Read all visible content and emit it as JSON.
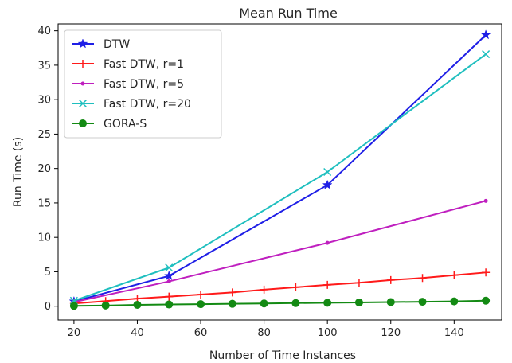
{
  "chart_data": {
    "type": "line",
    "title": "Mean Run Time",
    "xlabel": "Number of Time Instances",
    "ylabel": "Run Time (s)",
    "xlim": [
      15,
      155
    ],
    "ylim": [
      -2,
      41
    ],
    "xticks": [
      20,
      40,
      60,
      80,
      100,
      120,
      140
    ],
    "yticks": [
      0,
      5,
      10,
      15,
      20,
      25,
      30,
      35,
      40
    ],
    "grid": false,
    "legend_position": "top-left",
    "series": [
      {
        "name": "DTW",
        "color": "#1f1fe6",
        "marker": "star",
        "x": [
          20,
          50,
          100,
          150
        ],
        "y": [
          0.7,
          4.4,
          17.6,
          39.4
        ]
      },
      {
        "name": "Fast DTW, r=1",
        "color": "#ff1a1a",
        "marker": "plus",
        "x": [
          20,
          30,
          40,
          50,
          60,
          70,
          80,
          90,
          100,
          110,
          120,
          130,
          140,
          150
        ],
        "y": [
          0.4,
          0.75,
          1.1,
          1.4,
          1.7,
          2.0,
          2.4,
          2.75,
          3.1,
          3.4,
          3.8,
          4.1,
          4.5,
          4.9
        ]
      },
      {
        "name": "Fast DTW, r=5",
        "color": "#bf1fbf",
        "marker": "dot",
        "x": [
          20,
          50,
          100,
          150
        ],
        "y": [
          0.6,
          3.6,
          9.2,
          15.3
        ]
      },
      {
        "name": "Fast DTW, r=20",
        "color": "#1fbfbf",
        "marker": "x",
        "x": [
          20,
          50,
          100,
          150
        ],
        "y": [
          0.8,
          5.6,
          19.5,
          36.6
        ]
      },
      {
        "name": "GORA-S",
        "color": "#138a13",
        "marker": "circle",
        "x": [
          20,
          30,
          40,
          50,
          60,
          70,
          80,
          90,
          100,
          110,
          120,
          130,
          140,
          150
        ],
        "y": [
          0.05,
          0.1,
          0.2,
          0.25,
          0.3,
          0.35,
          0.4,
          0.45,
          0.5,
          0.55,
          0.6,
          0.65,
          0.7,
          0.8
        ]
      }
    ]
  }
}
